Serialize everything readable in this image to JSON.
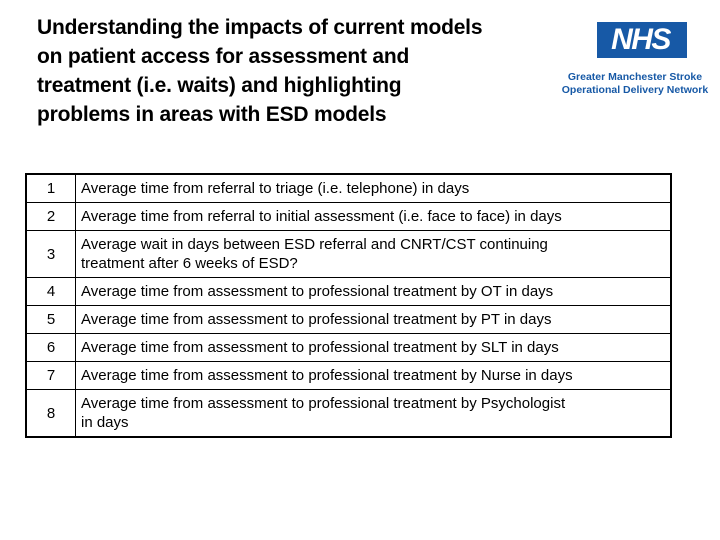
{
  "slide": {
    "title": {
      "lines": [
        "Understanding the impacts of current models",
        "on patient access for assessment and",
        "treatment (i.e. waits) and highlighting",
        "problems in areas with ESD models"
      ]
    },
    "branding": {
      "logo_text": "NHS",
      "network_line1": "Greater Manchester Stroke",
      "network_line2": "Operational Delivery Network",
      "nhs_blue": "#1759a6"
    },
    "table": {
      "rows": [
        {
          "num": "1",
          "text": "Average time from referral to triage (i.e. telephone) in days"
        },
        {
          "num": "2",
          "text": "Average time from referral to initial assessment (i.e. face to face) in days"
        },
        {
          "num": "3",
          "text": "Average wait in days between ESD referral and CNRT/CST continuing\ntreatment after 6 weeks of ESD?"
        },
        {
          "num": "4",
          "text": "Average time from assessment to professional treatment by OT in days"
        },
        {
          "num": "5",
          "text": "Average time from assessment to professional treatment by PT in days"
        },
        {
          "num": "6",
          "text": "Average time from assessment to professional treatment by SLT in days"
        },
        {
          "num": "7",
          "text": "Average time from assessment to professional treatment by Nurse in days"
        },
        {
          "num": "8",
          "text": "Average time from assessment to professional treatment by Psychologist\nin days"
        }
      ]
    }
  }
}
